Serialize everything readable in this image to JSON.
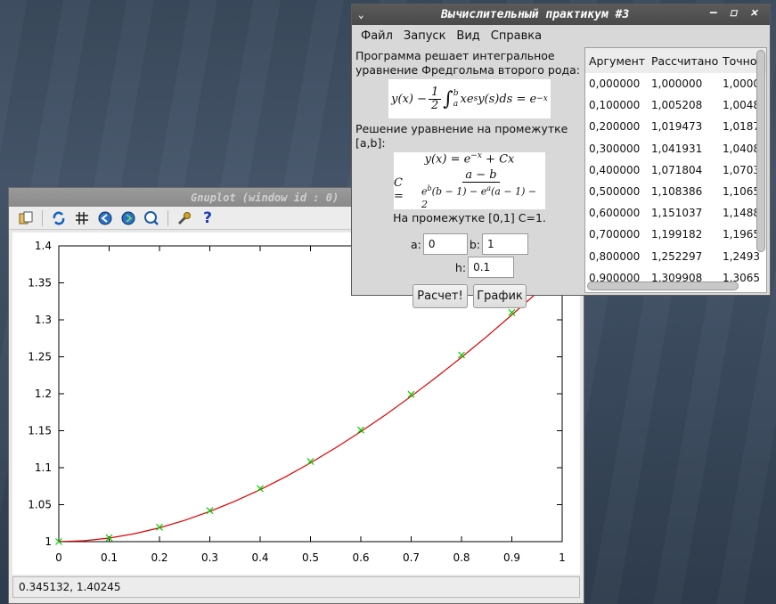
{
  "gnuplot": {
    "title": "Gnuplot (window id : 0)",
    "status": "0.345132,  1.40245",
    "toolbar_icons": [
      "copy-icon",
      "refresh-icon",
      "grid-icon",
      "zoom-prev-icon",
      "zoom-next-icon",
      "autoscale-icon",
      "settings-icon",
      "help-icon"
    ]
  },
  "main": {
    "title": "Вычислительный практикум #3",
    "menu": [
      "Файл",
      "Запуск",
      "Вид",
      "Справка"
    ],
    "desc1": "Программа решает интегральное уравнение Фредгольма второго рода:",
    "desc2": "Решение уравнение на промежутке [a,b]:",
    "result": "На промежутке [0,1] C=1.",
    "a_label": "a:",
    "a_value": "0",
    "b_label": "b:",
    "b_value": "1",
    "h_label": "h:",
    "h_value": "0.1",
    "calc_button": "Расчет!",
    "plot_button": "График"
  },
  "table": {
    "headers": [
      "Аргумент",
      "Рассчитано",
      "Точно"
    ],
    "rows": [
      [
        "0,000000",
        "1,000000",
        "1,0000"
      ],
      [
        "0,100000",
        "1,005208",
        "1,0048"
      ],
      [
        "0,200000",
        "1,019473",
        "1,0187"
      ],
      [
        "0,300000",
        "1,041931",
        "1,0408"
      ],
      [
        "0,400000",
        "1,071804",
        "1,0703"
      ],
      [
        "0,500000",
        "1,108386",
        "1,1065"
      ],
      [
        "0,600000",
        "1,151037",
        "1,1488"
      ],
      [
        "0,700000",
        "1,199182",
        "1,1965"
      ],
      [
        "0,800000",
        "1,252297",
        "1,2493"
      ],
      [
        "0,900000",
        "1,309908",
        "1,3065"
      ]
    ]
  },
  "chart_data": {
    "type": "line",
    "x_ticks": [
      "0",
      "0.1",
      "0.2",
      "0.3",
      "0.4",
      "0.5",
      "0.6",
      "0.7",
      "0.8",
      "0.9",
      "1"
    ],
    "y_ticks": [
      "1",
      "1.05",
      "1.1",
      "1.15",
      "1.2",
      "1.25",
      "1.3",
      "1.35",
      "1.4"
    ],
    "xlim": [
      0,
      1
    ],
    "ylim": [
      1,
      1.4
    ],
    "series": [
      {
        "color": "#e00000",
        "style": "line",
        "x": [
          0,
          0.05,
          0.1,
          0.15,
          0.2,
          0.25,
          0.3,
          0.35,
          0.4,
          0.45,
          0.5,
          0.55,
          0.6,
          0.65,
          0.7,
          0.75,
          0.8,
          0.85,
          0.9,
          0.95,
          1.0
        ],
        "y": [
          1.0,
          1.0012,
          1.0048,
          1.0107,
          1.0187,
          1.0288,
          1.0408,
          1.0547,
          1.0703,
          1.0876,
          1.1065,
          1.127,
          1.1488,
          1.172,
          1.1966,
          1.2224,
          1.2493,
          1.2774,
          1.3066,
          1.3367,
          1.3679
        ]
      },
      {
        "color": "#00cc00",
        "style": "points",
        "x": [
          0,
          0.1,
          0.2,
          0.3,
          0.4,
          0.5,
          0.6,
          0.7,
          0.8,
          0.9
        ],
        "y": [
          1.0,
          1.005208,
          1.019473,
          1.041931,
          1.071804,
          1.108386,
          1.151037,
          1.199182,
          1.252297,
          1.309908
        ]
      }
    ]
  }
}
